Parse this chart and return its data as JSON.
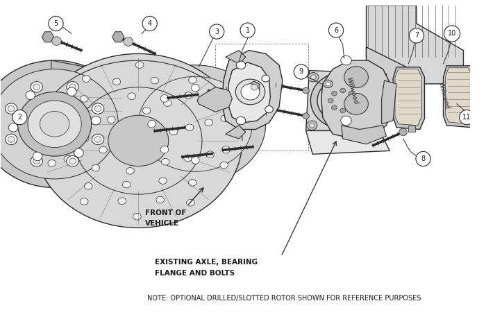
{
  "background_color": "#ffffff",
  "line_color": "#2a2a2a",
  "fill_light": "#e8e8e8",
  "fill_mid": "#d0d0d0",
  "fill_dark": "#b8b8b8",
  "text_color": "#1a1a1a",
  "note_text": "NOTE: OPTIONAL DRILLED/SLOTTED ROTOR SHOWN FOR REFERENCE PURPOSES",
  "label_axle_line1": "EXISTING AXLE, BEARING",
  "label_axle_line2": "FLANGE AND BOLTS",
  "label_front_line1": "FRONT OF",
  "label_front_line2": "VEHICLE",
  "part_numbers": [
    1,
    2,
    3,
    4,
    5,
    6,
    7,
    8,
    9,
    10,
    11
  ],
  "fig_width": 7.0,
  "fig_height": 4.57,
  "dpi": 100
}
